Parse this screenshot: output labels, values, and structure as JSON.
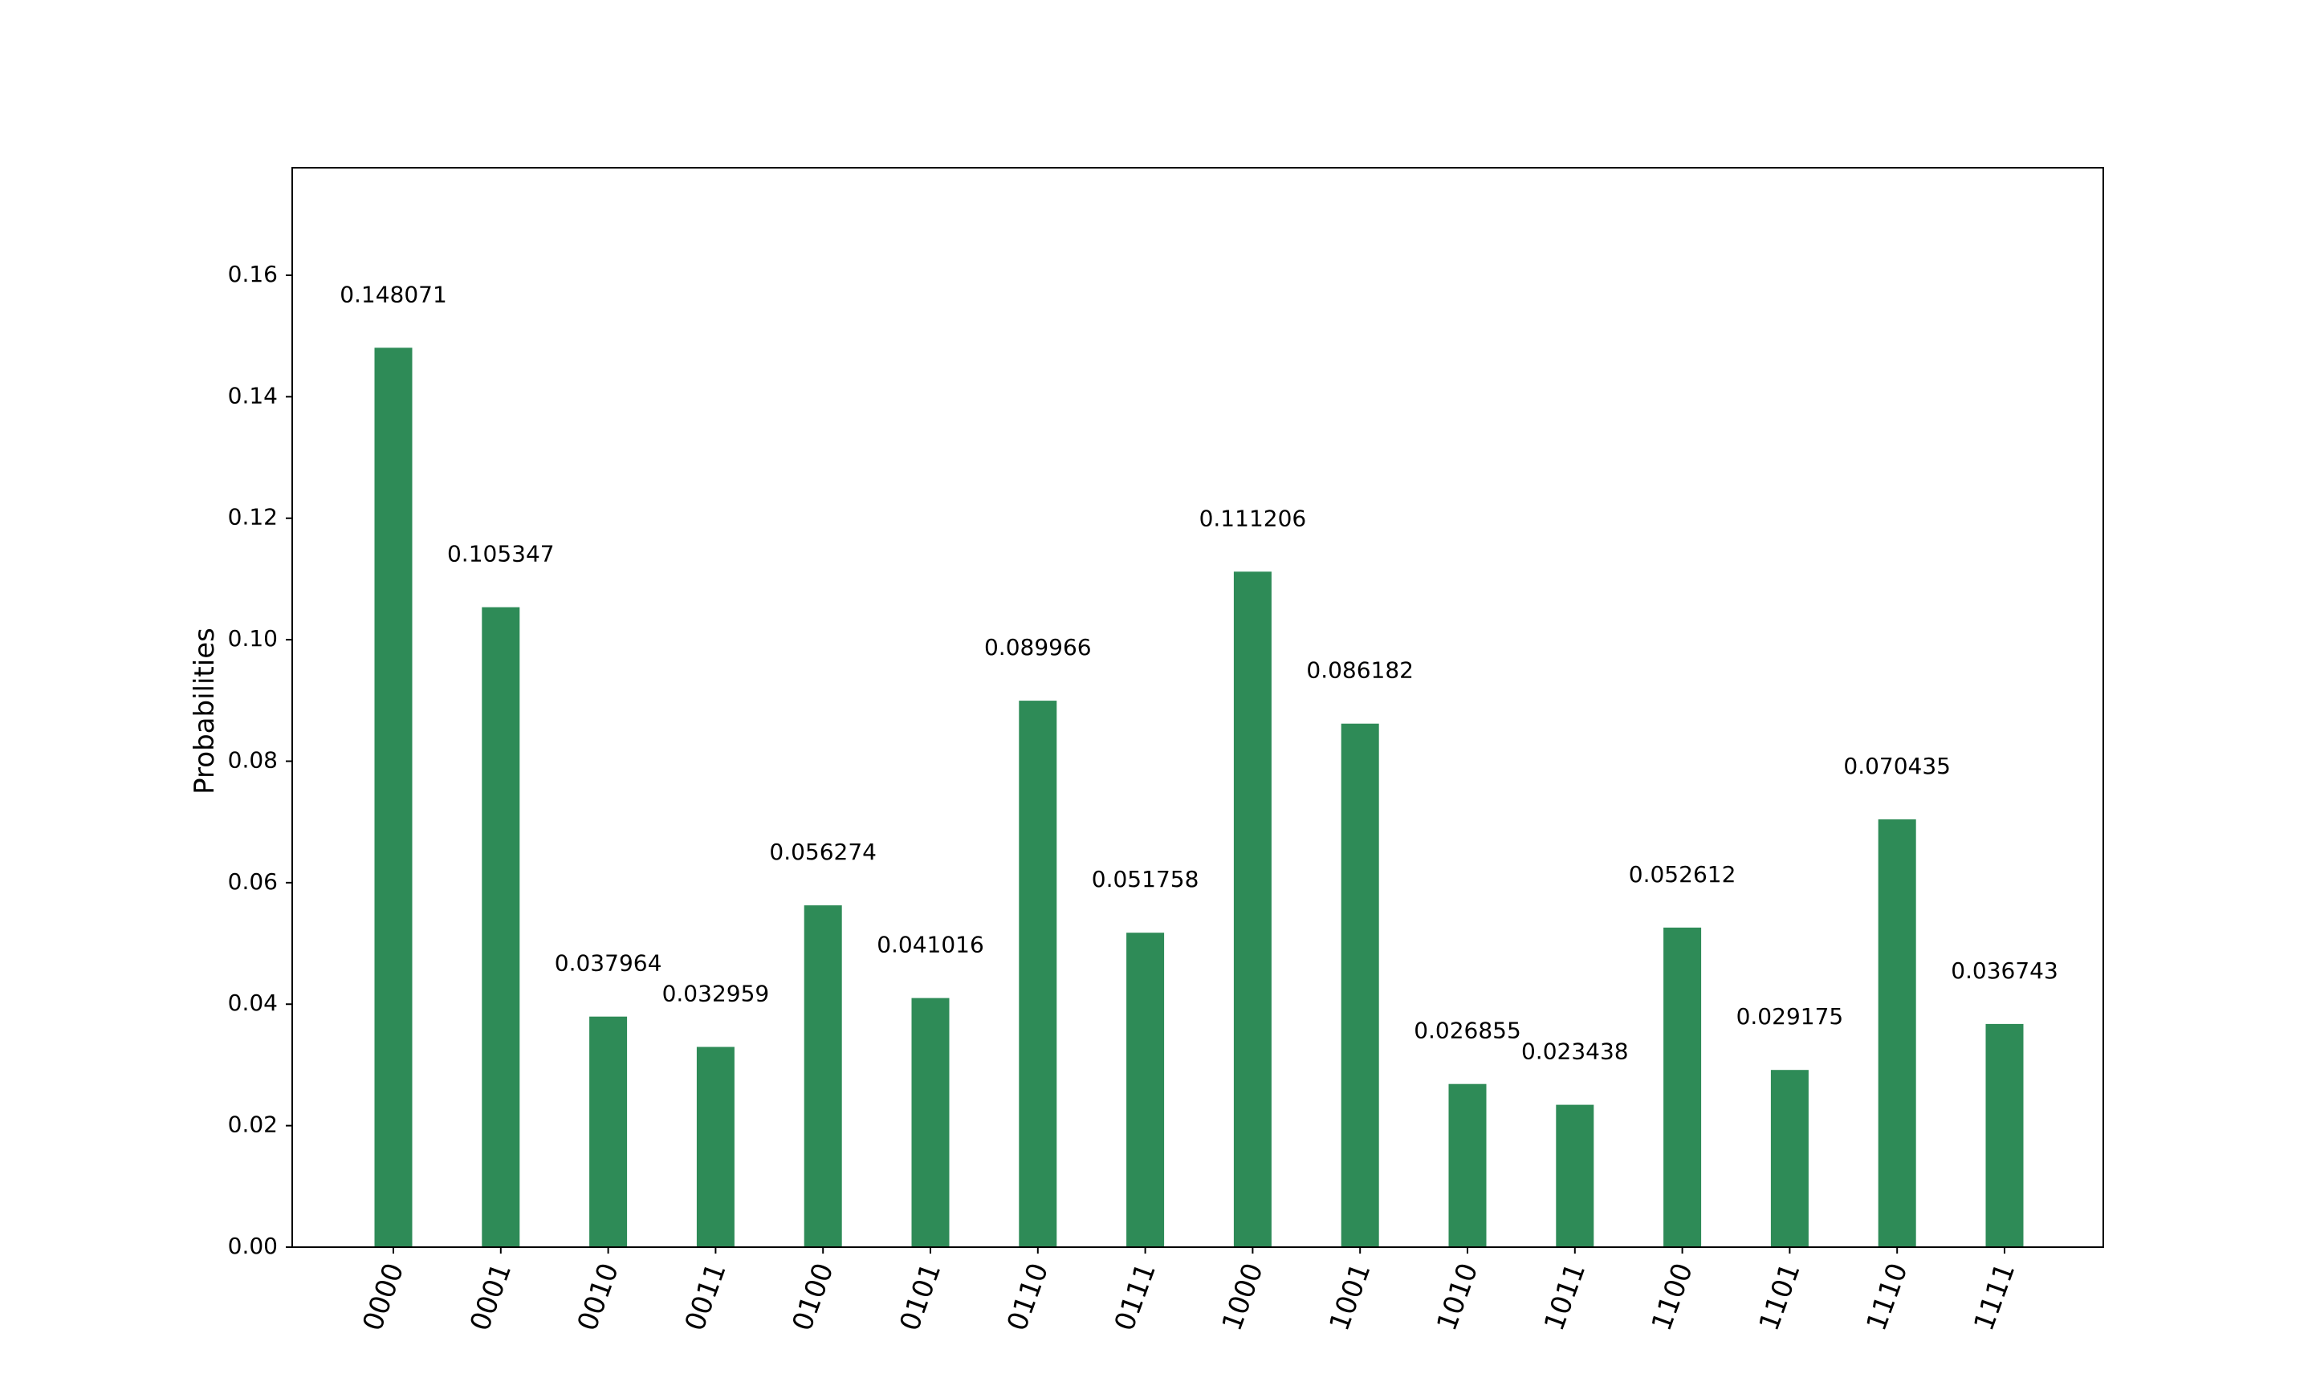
{
  "chart_data": {
    "type": "bar",
    "title": "",
    "xlabel": "",
    "ylabel": "Probabilities",
    "categories": [
      "0000",
      "0001",
      "0010",
      "0011",
      "0100",
      "0101",
      "0110",
      "0111",
      "1000",
      "1001",
      "1010",
      "1011",
      "1100",
      "1101",
      "1110",
      "1111"
    ],
    "values": [
      0.148071,
      0.105347,
      0.037964,
      0.032959,
      0.056274,
      0.041016,
      0.089966,
      0.051758,
      0.111206,
      0.086182,
      0.026855,
      0.023438,
      0.052612,
      0.029175,
      0.070435,
      0.036743
    ],
    "data_labels": [
      "0.148071",
      "0.105347",
      "0.037964",
      "0.032959",
      "0.056274",
      "0.041016",
      "0.089966",
      "0.051758",
      "0.111206",
      "0.086182",
      "0.026855",
      "0.023438",
      "0.052612",
      "0.029175",
      "0.070435",
      "0.036743"
    ],
    "ylim": [
      0,
      0.1777
    ],
    "yticks": [
      0.0,
      0.02,
      0.04,
      0.06,
      0.08,
      0.1,
      0.12,
      0.14,
      0.16
    ],
    "ytick_labels": [
      "0.00",
      "0.02",
      "0.04",
      "0.06",
      "0.08",
      "0.10",
      "0.12",
      "0.14",
      "0.16"
    ],
    "bar_color": "#2e8b57",
    "grid": false,
    "legend": "none"
  }
}
